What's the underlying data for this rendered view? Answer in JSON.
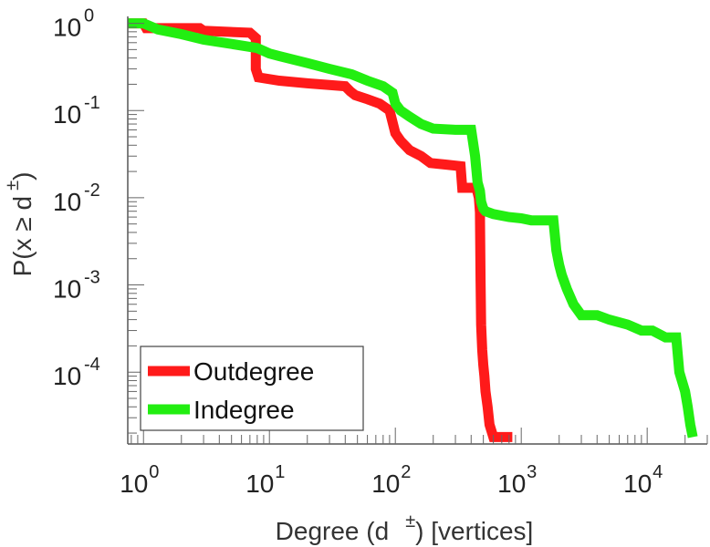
{
  "chart_data": {
    "type": "line",
    "scale": "log-log",
    "title": "",
    "xlabel": {
      "main": "Degree (d",
      "superscript": "±",
      "rest": ") [vertices]"
    },
    "ylabel": {
      "main": "P(x ≥ d",
      "superscript": "±",
      "rest": ")"
    },
    "xlim": [
      0.75,
      30000
    ],
    "ylim": [
      1.5e-05,
      1.2
    ],
    "x_ticks": [
      {
        "base": "10",
        "exp": "0",
        "value": 1
      },
      {
        "base": "10",
        "exp": "1",
        "value": 10
      },
      {
        "base": "10",
        "exp": "2",
        "value": 100
      },
      {
        "base": "10",
        "exp": "3",
        "value": 1000
      },
      {
        "base": "10",
        "exp": "4",
        "value": 10000
      }
    ],
    "y_ticks": [
      {
        "base": "10",
        "exp": "0",
        "value": 1
      },
      {
        "base": "10",
        "exp": "-1",
        "value": 0.1
      },
      {
        "base": "10",
        "exp": "-2",
        "value": 0.01
      },
      {
        "base": "10",
        "exp": "-3",
        "value": 0.001
      },
      {
        "base": "10",
        "exp": "-4",
        "value": 0.0001
      }
    ],
    "grid": false,
    "legend_position": "bottom-left",
    "series": [
      {
        "name": "Outdegree",
        "color": "#ff1a1a",
        "x": [
          0.75,
          1,
          1.05,
          2.8,
          3,
          7,
          7.8,
          7.8,
          8.2,
          12,
          20,
          40,
          44,
          48,
          60,
          75,
          90,
          100,
          110,
          130,
          160,
          190,
          250,
          330,
          340,
          440,
          460,
          470,
          475,
          480,
          490,
          500,
          510,
          520,
          540,
          560,
          600,
          850
        ],
        "y": [
          1.0,
          1.0,
          0.88,
          0.88,
          0.82,
          0.78,
          0.68,
          0.3,
          0.24,
          0.22,
          0.205,
          0.19,
          0.165,
          0.15,
          0.135,
          0.12,
          0.1,
          0.055,
          0.045,
          0.035,
          0.03,
          0.025,
          0.024,
          0.023,
          0.013,
          0.013,
          0.01,
          0.0068,
          0.0011,
          0.00035,
          0.00018,
          0.00012,
          9e-05,
          6e-05,
          4e-05,
          2.5e-05,
          1.8e-05,
          1.8e-05
        ]
      },
      {
        "name": "Indegree",
        "color": "#22ee11",
        "x": [
          0.75,
          1,
          1.3,
          2,
          3,
          5,
          8,
          10,
          12,
          20,
          30,
          45,
          60,
          80,
          95,
          100,
          110,
          130,
          160,
          200,
          300,
          400,
          430,
          450,
          470,
          480,
          500,
          520,
          600,
          800,
          1000,
          1200,
          1800,
          1900,
          2000,
          2100,
          2300,
          2600,
          3000,
          4000,
          5000,
          7000,
          9000,
          11000,
          14000,
          17000,
          18000,
          20000,
          21000,
          22000,
          23000
        ],
        "y": [
          1.0,
          1.0,
          0.85,
          0.75,
          0.65,
          0.58,
          0.52,
          0.45,
          0.42,
          0.35,
          0.3,
          0.26,
          0.22,
          0.19,
          0.16,
          0.12,
          0.1,
          0.085,
          0.07,
          0.062,
          0.06,
          0.06,
          0.03,
          0.015,
          0.012,
          0.009,
          0.0075,
          0.007,
          0.0065,
          0.006,
          0.0058,
          0.0055,
          0.0055,
          0.0025,
          0.0017,
          0.0013,
          0.0009,
          0.0006,
          0.00045,
          0.00045,
          0.0004,
          0.00035,
          0.0003,
          0.0003,
          0.00025,
          0.00025,
          0.0001,
          6e-05,
          4e-05,
          2.5e-05,
          1.8e-05
        ]
      }
    ]
  }
}
